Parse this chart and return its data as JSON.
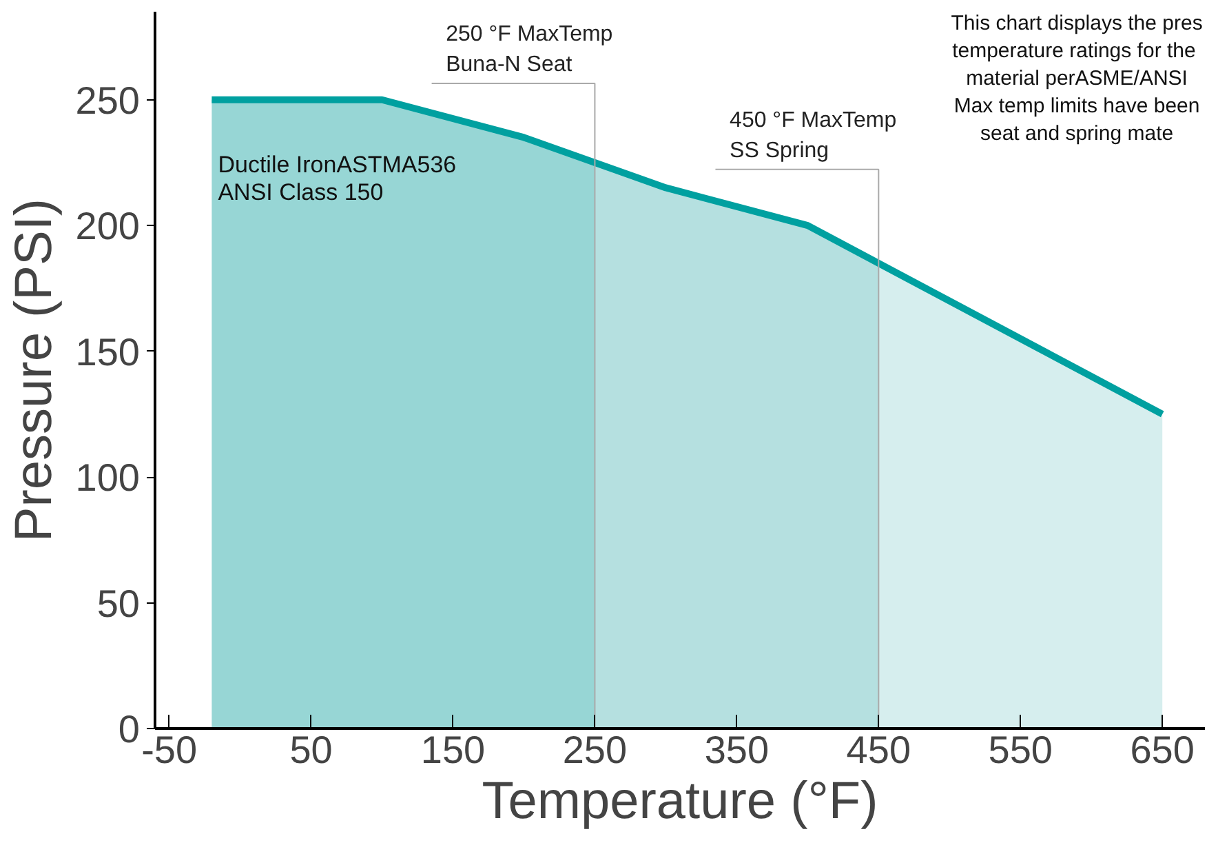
{
  "chart_data": {
    "type": "area",
    "xlabel": "Temperature (°F)",
    "ylabel": "Pressure (PSI)",
    "series": [
      {
        "color": "#97d6d5",
        "x": [
          -20,
          100,
          200,
          250
        ],
        "values": [
          250,
          250,
          235,
          225
        ]
      },
      {
        "color": "#b5e0e0",
        "x": [
          250,
          300,
          400,
          450
        ],
        "values": [
          225,
          215,
          200,
          185
        ]
      },
      {
        "color": "#d6eeee",
        "x": [
          450,
          650
        ],
        "values": [
          185,
          125
        ]
      },
      {
        "type": "line",
        "color": "#00a0a0",
        "x": [
          -20,
          100,
          200,
          300,
          400,
          650
        ],
        "values": [
          250,
          250,
          235,
          215,
          200,
          125
        ]
      }
    ],
    "xlim": [
      -60,
      680
    ],
    "ylim": [
      0,
      285
    ],
    "xticks": [
      -50,
      50,
      150,
      250,
      350,
      450,
      550,
      650
    ],
    "yticks": [
      0,
      50,
      100,
      150,
      200,
      250
    ],
    "ref_lines": [
      {
        "axis": "x",
        "value": 250,
        "label": "250 °F MaxTemp\nBuna-N Seat",
        "color": "#aaaaaa"
      },
      {
        "axis": "x",
        "value": 450,
        "label": "450 °F MaxTemp\nSS Spring",
        "color": "#aaaaaa"
      }
    ],
    "annotations": [
      "Ductile IronASTMA536\nANSI Class 150",
      "This chart displays the pres\ntemperature ratings for the \nmaterial perASME/ANSI\nMax temp limits have been\nseat and spring mate"
    ],
    "grid": false
  }
}
